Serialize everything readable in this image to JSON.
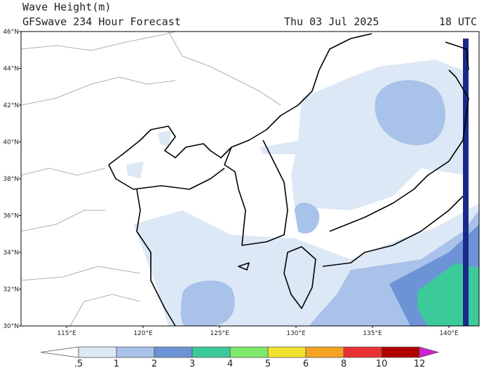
{
  "header": {
    "title": "Wave Height(m)",
    "subtitle": "GFSwave 234 Hour Forecast",
    "date": "Thu 03 Jul 2025",
    "time": "18 UTC"
  },
  "map": {
    "lat_labels": [
      "30°N",
      "32°N",
      "34°N",
      "36°N",
      "38°N",
      "40°N",
      "42°N",
      "44°N",
      "46°N"
    ],
    "lon_labels": [
      "115°E",
      "120°E",
      "125°E",
      "130°E",
      "135°E",
      "140°E"
    ]
  },
  "colorbar": {
    "labels": [
      ".5",
      "1",
      "2",
      "3",
      "4",
      "5",
      "6",
      "8",
      "10",
      "12"
    ],
    "colors": [
      "#ffffff",
      "#dde8f6",
      "#a9c2ea",
      "#6c93d6",
      "#3dca9b",
      "#7ee86a",
      "#f2e232",
      "#f5a122",
      "#e83232",
      "#b00000",
      "#d020d0"
    ]
  }
}
